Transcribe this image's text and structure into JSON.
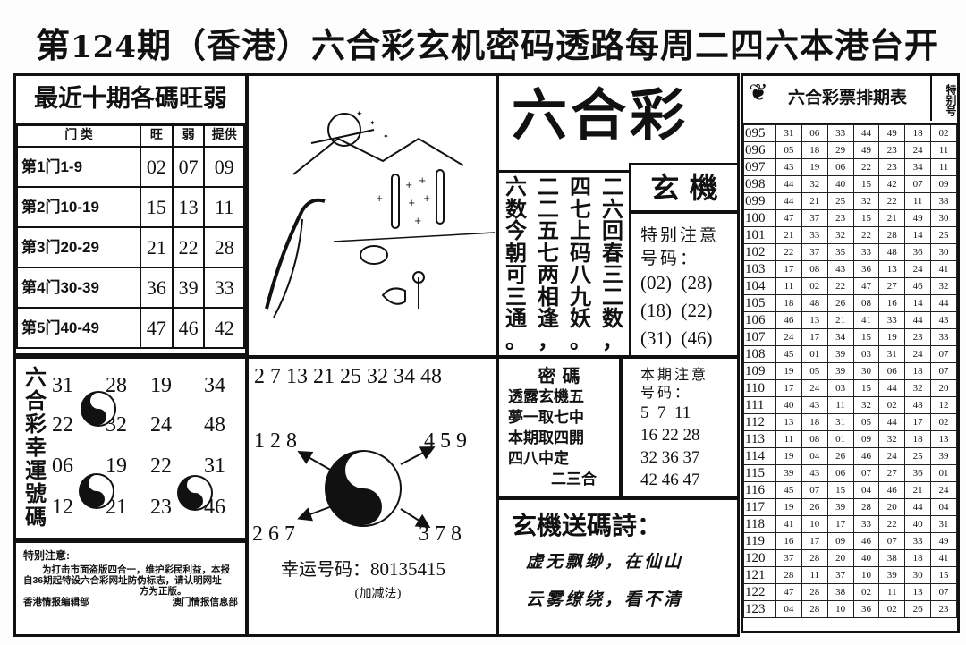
{
  "header": {
    "issue_prefix": "第",
    "issue_number": "124",
    "issue_suffix": "期",
    "title": "（香港）六合彩玄机密码透路每周二四六本港台开"
  },
  "strength_table": {
    "title": "最近十期各碼旺弱",
    "columns": [
      "门 类",
      "旺",
      "弱",
      "提供"
    ],
    "rows": [
      {
        "door": "第1门1-9",
        "strong": "02",
        "weak": "07",
        "offer": "09"
      },
      {
        "door": "第2门10-19",
        "strong": "15",
        "weak": "13",
        "offer": "11"
      },
      {
        "door": "第3门20-29",
        "strong": "21",
        "weak": "22",
        "offer": "28"
      },
      {
        "door": "第4门30-39",
        "strong": "36",
        "weak": "39",
        "offer": "33"
      },
      {
        "door": "第5门40-49",
        "strong": "47",
        "weak": "46",
        "offer": "42"
      }
    ]
  },
  "lucky_numbers": {
    "label_chars": [
      "六",
      "合",
      "彩",
      "幸",
      "運",
      "號",
      "碼"
    ],
    "rows": [
      [
        "31",
        "28",
        "19",
        "34"
      ],
      [
        "22",
        "32",
        "24",
        "48"
      ],
      [
        "06",
        "19",
        "22",
        "31"
      ],
      [
        "12",
        "21",
        "23",
        "46"
      ]
    ]
  },
  "notice": {
    "title": "特别注意:",
    "body": "为打击市面盗版四合一，维护彩民利益，本报自36期起特设六合彩网址防伪标志，请认明网址",
    "tail": "方为正版。",
    "sign_left": "香港情报编辑部",
    "sign_right": "澳门情报信息部"
  },
  "taiji": {
    "top_numbers": "2 7 13 21 25 32 34 48",
    "top_left": "1 2 8",
    "top_right": "4 5 9",
    "bottom_left": "2 6 7",
    "bottom_right": "3 7 8",
    "lucky_label": "幸运号码：",
    "lucky_value": "80135415",
    "method": "(加减法)"
  },
  "logo": {
    "main": "六合彩",
    "sub": "玄 機"
  },
  "poem_columns": [
    "二六回春三二数，",
    "四七上码八九妖。",
    "二二五七两相逢，",
    "六数今朝可三通。"
  ],
  "special_numbers": {
    "title": "特别注意",
    "subtitle": "号码：",
    "pairs": [
      "(02)  (28)",
      "(18)  (22)",
      "(31)  (46)"
    ]
  },
  "secret_code": {
    "title": "密 碼",
    "lines": [
      "透露玄機五",
      "夢一取七中",
      "本期取四開",
      "四八中定",
      "二三合"
    ]
  },
  "this_issue": {
    "title": "本期注意",
    "subtitle": "号码：",
    "lines": [
      "5  7  11",
      "16 22 28",
      "32 36 37",
      "42 46 47"
    ]
  },
  "code_poem": {
    "title": "玄機送碼詩：",
    "lines": [
      "虚无飘缈，在仙山",
      "云雾缭绕，看不清"
    ]
  },
  "history": {
    "title": "六合彩票排期表",
    "special_header": "特别号",
    "rows": [
      [
        "095",
        "31",
        "06",
        "33",
        "44",
        "49",
        "18",
        "02"
      ],
      [
        "096",
        "05",
        "18",
        "29",
        "49",
        "23",
        "24",
        "11"
      ],
      [
        "097",
        "43",
        "19",
        "06",
        "22",
        "23",
        "34",
        "11"
      ],
      [
        "098",
        "44",
        "32",
        "40",
        "15",
        "42",
        "07",
        "09"
      ],
      [
        "099",
        "44",
        "21",
        "25",
        "32",
        "22",
        "11",
        "38"
      ],
      [
        "100",
        "47",
        "37",
        "23",
        "15",
        "21",
        "49",
        "30"
      ],
      [
        "101",
        "21",
        "33",
        "32",
        "22",
        "28",
        "14",
        "25"
      ],
      [
        "102",
        "22",
        "37",
        "35",
        "33",
        "48",
        "36",
        "30"
      ],
      [
        "103",
        "17",
        "08",
        "43",
        "36",
        "13",
        "24",
        "41"
      ],
      [
        "104",
        "11",
        "02",
        "22",
        "47",
        "27",
        "46",
        "32"
      ],
      [
        "105",
        "18",
        "48",
        "26",
        "08",
        "16",
        "14",
        "44"
      ],
      [
        "106",
        "46",
        "13",
        "21",
        "41",
        "33",
        "44",
        "43"
      ],
      [
        "107",
        "24",
        "17",
        "34",
        "15",
        "19",
        "23",
        "33"
      ],
      [
        "108",
        "45",
        "01",
        "39",
        "03",
        "31",
        "24",
        "07"
      ],
      [
        "109",
        "19",
        "05",
        "39",
        "30",
        "06",
        "18",
        "07"
      ],
      [
        "110",
        "17",
        "24",
        "03",
        "15",
        "44",
        "32",
        "20"
      ],
      [
        "111",
        "40",
        "43",
        "11",
        "32",
        "02",
        "48",
        "12"
      ],
      [
        "112",
        "13",
        "18",
        "31",
        "05",
        "44",
        "17",
        "02"
      ],
      [
        "113",
        "11",
        "08",
        "01",
        "09",
        "32",
        "18",
        "13"
      ],
      [
        "114",
        "19",
        "04",
        "26",
        "46",
        "24",
        "25",
        "39"
      ],
      [
        "115",
        "39",
        "43",
        "06",
        "07",
        "27",
        "36",
        "01"
      ],
      [
        "116",
        "45",
        "07",
        "15",
        "04",
        "46",
        "21",
        "24"
      ],
      [
        "117",
        "19",
        "26",
        "39",
        "28",
        "20",
        "44",
        "04"
      ],
      [
        "118",
        "41",
        "10",
        "17",
        "33",
        "22",
        "40",
        "31"
      ],
      [
        "119",
        "16",
        "17",
        "09",
        "46",
        "07",
        "33",
        "49"
      ],
      [
        "120",
        "37",
        "28",
        "20",
        "40",
        "38",
        "18",
        "41"
      ],
      [
        "121",
        "28",
        "11",
        "37",
        "10",
        "39",
        "30",
        "15"
      ],
      [
        "122",
        "47",
        "28",
        "38",
        "02",
        "11",
        "13",
        "07"
      ],
      [
        "123",
        "04",
        "28",
        "10",
        "36",
        "02",
        "26",
        "23"
      ]
    ]
  }
}
